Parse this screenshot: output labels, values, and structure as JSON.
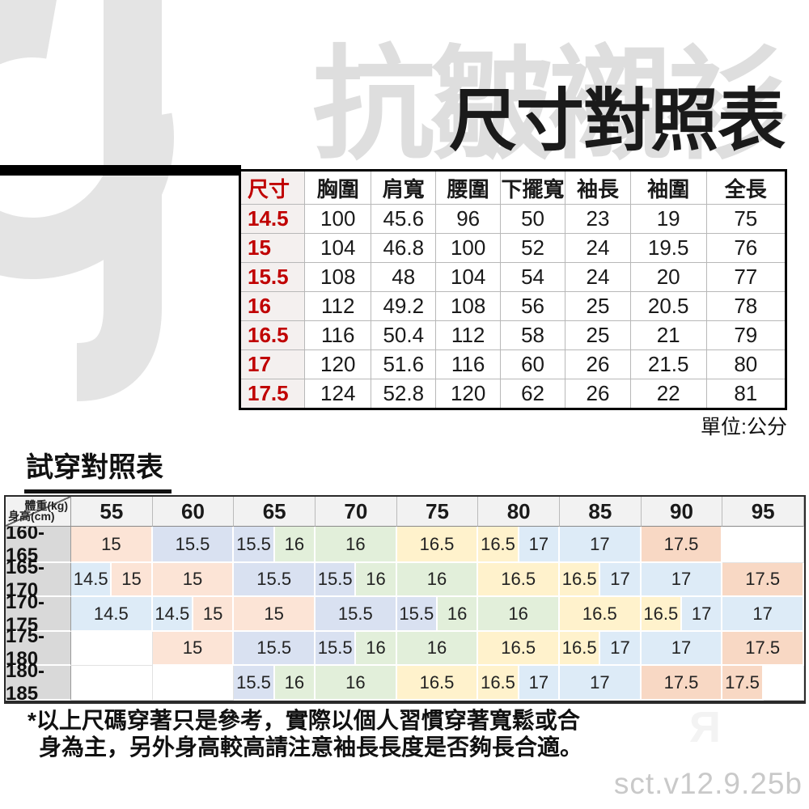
{
  "watermark": {
    "logo": "Cj",
    "product_text": "抗皺襯衫",
    "faint_glyph": "Я",
    "version": "sct.v12.9.25b"
  },
  "page_title": "尺寸對照表",
  "unit_note": "單位:公分",
  "size_table": {
    "headers": [
      "尺寸",
      "胸圍",
      "肩寬",
      "腰圍",
      "下擺寬",
      "袖長",
      "袖圍",
      "全長"
    ],
    "rows": [
      [
        "14.5",
        "100",
        "45.6",
        "96",
        "50",
        "23",
        "19",
        "75"
      ],
      [
        "15",
        "104",
        "46.8",
        "100",
        "52",
        "24",
        "19.5",
        "76"
      ],
      [
        "15.5",
        "108",
        "48",
        "104",
        "54",
        "24",
        "20",
        "77"
      ],
      [
        "16",
        "112",
        "49.2",
        "108",
        "56",
        "25",
        "20.5",
        "78"
      ],
      [
        "16.5",
        "116",
        "50.4",
        "112",
        "58",
        "25",
        "21",
        "79"
      ],
      [
        "17",
        "120",
        "51.6",
        "116",
        "60",
        "26",
        "21.5",
        "80"
      ],
      [
        "17.5",
        "124",
        "52.8",
        "120",
        "62",
        "26",
        "22",
        "81"
      ]
    ]
  },
  "fit_section": {
    "title": "試穿對照表",
    "corner": {
      "top_right": "體重(kg)",
      "bottom_left": "身高(cm)"
    },
    "weight_headers": [
      "55",
      "60",
      "65",
      "70",
      "75",
      "80",
      "85",
      "90",
      "95"
    ],
    "colors": {
      "14.5": "#DDEBF7",
      "15": "#FCE4D6",
      "15.5": "#D9E1F1",
      "16": "#E2EFDA",
      "16.5": "#FFF2CC",
      "17": "#DDEBF7",
      "17.5": "#F8D8C4",
      "empty": "#FFFFFF"
    },
    "rows": [
      {
        "height": "160-165",
        "cells": [
          {
            "t": "15",
            "s": 2
          },
          {
            "t": "15.5",
            "s": 2
          },
          {
            "t": "15.5",
            "s": 1
          },
          {
            "t": "16",
            "s": 1
          },
          {
            "t": "16",
            "s": 2
          },
          {
            "t": "16.5",
            "s": 2
          },
          {
            "t": "16.5",
            "s": 1
          },
          {
            "t": "17",
            "s": 1
          },
          {
            "t": "17",
            "s": 2
          },
          {
            "t": "17.5",
            "s": 2
          },
          {
            "t": "",
            "s": 2
          }
        ]
      },
      {
        "height": "165-170",
        "cells": [
          {
            "t": "14.5",
            "s": 1
          },
          {
            "t": "15",
            "s": 1
          },
          {
            "t": "15",
            "s": 2
          },
          {
            "t": "15.5",
            "s": 2
          },
          {
            "t": "15.5",
            "s": 1
          },
          {
            "t": "16",
            "s": 1
          },
          {
            "t": "16",
            "s": 2
          },
          {
            "t": "16.5",
            "s": 2
          },
          {
            "t": "16.5",
            "s": 1
          },
          {
            "t": "17",
            "s": 1
          },
          {
            "t": "17",
            "s": 2
          },
          {
            "t": "17.5",
            "s": 2
          }
        ]
      },
      {
        "height": "170-175",
        "cells": [
          {
            "t": "14.5",
            "s": 2
          },
          {
            "t": "14.5",
            "s": 1
          },
          {
            "t": "15",
            "s": 1
          },
          {
            "t": "15",
            "s": 2
          },
          {
            "t": "15.5",
            "s": 2
          },
          {
            "t": "15.5",
            "s": 1
          },
          {
            "t": "16",
            "s": 1
          },
          {
            "t": "16",
            "s": 2
          },
          {
            "t": "16.5",
            "s": 2
          },
          {
            "t": "16.5",
            "s": 1
          },
          {
            "t": "17",
            "s": 1
          },
          {
            "t": "17",
            "s": 2
          }
        ]
      },
      {
        "height": "175-180",
        "cells": [
          {
            "t": "",
            "s": 2
          },
          {
            "t": "15",
            "s": 2
          },
          {
            "t": "15.5",
            "s": 2
          },
          {
            "t": "15.5",
            "s": 1
          },
          {
            "t": "16",
            "s": 1
          },
          {
            "t": "16",
            "s": 2
          },
          {
            "t": "16.5",
            "s": 2
          },
          {
            "t": "16.5",
            "s": 1
          },
          {
            "t": "17",
            "s": 1
          },
          {
            "t": "17",
            "s": 2
          },
          {
            "t": "17.5",
            "s": 2
          }
        ]
      },
      {
        "height": "180-185",
        "cells": [
          {
            "t": "",
            "s": 2
          },
          {
            "t": "",
            "s": 2
          },
          {
            "t": "15.5",
            "s": 1
          },
          {
            "t": "16",
            "s": 1
          },
          {
            "t": "16",
            "s": 2
          },
          {
            "t": "16.5",
            "s": 2
          },
          {
            "t": "16.5",
            "s": 1
          },
          {
            "t": "17",
            "s": 1
          },
          {
            "t": "17",
            "s": 2
          },
          {
            "t": "17.5",
            "s": 2
          },
          {
            "t": "17.5",
            "s": 1
          },
          {
            "t": "",
            "s": 1
          }
        ]
      }
    ]
  },
  "footnote": {
    "line1": "*以上尺碼穿著只是參考，實際以個人習慣穿著寬鬆或合",
    "line2": "身為主，另外身高較高請注意袖長長度是否夠長合適。"
  }
}
